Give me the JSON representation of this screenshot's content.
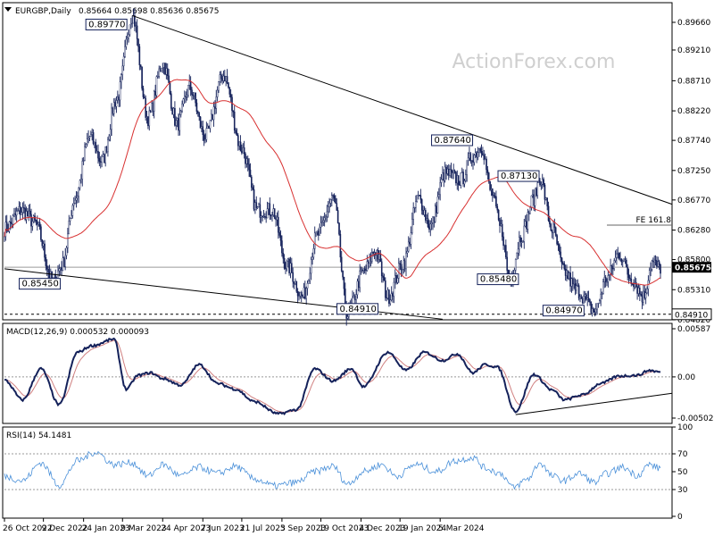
{
  "header": {
    "symbol": "EURGBP,Daily",
    "ohlc": "0.85664 0.85698 0.85636 0.85675"
  },
  "watermark": "ActionForex.com",
  "colors": {
    "candle": "#14215a",
    "ma": "#d83030",
    "macd_line": "#14215a",
    "macd_signal": "#d08080",
    "rsi": "#4a90d9",
    "trendline": "#000000",
    "grid_ref": "#999999"
  },
  "chart_data": [
    {
      "type": "candlestick",
      "title": "EURGBP,Daily",
      "ylim": [
        0.8482,
        0.8998
      ],
      "ytick_labels": [
        "0.89660",
        "0.89210",
        "0.88710",
        "0.88220",
        "0.87740",
        "0.87250",
        "0.86770",
        "0.86280",
        "0.85800",
        "0.85310",
        "0.84820"
      ],
      "ytick_values": [
        0.8966,
        0.8921,
        0.8871,
        0.8822,
        0.8774,
        0.8725,
        0.8677,
        0.8628,
        0.858,
        0.8531,
        0.8482
      ],
      "last_price": "0.85675",
      "last_price_value": 0.85675,
      "support_level": "0.84910",
      "support_value": 0.8491,
      "fe_label": "FE 161.8",
      "fe_value": 0.8636,
      "xtick_labels": [
        "26 Oct 2022",
        "9 Dec 2022",
        "24 Jan 2023",
        "9 Mar 2023",
        "24 Apr 2023",
        "7 Jun 2023",
        "21 Jul 2023",
        "5 Sep 2023",
        "19 Oct 2023",
        "4 Dec 2023",
        "19 Jan 2024",
        "5 Mar 2024"
      ],
      "xtick_index": [
        0,
        32,
        65,
        97,
        130,
        163,
        195,
        228,
        260,
        293,
        325,
        358
      ],
      "annotations": [
        {
          "label": "0.89770",
          "index": 105,
          "value": 0.8977
        },
        {
          "label": "0.85450",
          "index": 40,
          "value": 0.8545
        },
        {
          "label": "0.84910",
          "index": 282,
          "value": 0.8491
        },
        {
          "label": "0.87640",
          "index": 392,
          "value": 0.8764
        },
        {
          "label": "0.85480",
          "index": 415,
          "value": 0.8548
        },
        {
          "label": "0.87130",
          "index": 440,
          "value": 0.8713
        },
        {
          "label": "0.84970",
          "index": 485,
          "value": 0.8497
        }
      ],
      "anchors": [
        [
          0,
          0.863
        ],
        [
          14,
          0.866
        ],
        [
          25,
          0.864
        ],
        [
          40,
          0.8545
        ],
        [
          47,
          0.857
        ],
        [
          58,
          0.868
        ],
        [
          70,
          0.878
        ],
        [
          80,
          0.874
        ],
        [
          92,
          0.884
        ],
        [
          105,
          0.8977
        ],
        [
          118,
          0.881
        ],
        [
          130,
          0.89
        ],
        [
          142,
          0.88
        ],
        [
          152,
          0.886
        ],
        [
          165,
          0.878
        ],
        [
          180,
          0.888
        ],
        [
          195,
          0.876
        ],
        [
          208,
          0.866
        ],
        [
          220,
          0.866
        ],
        [
          232,
          0.857
        ],
        [
          245,
          0.852
        ],
        [
          257,
          0.862
        ],
        [
          270,
          0.868
        ],
        [
          282,
          0.8491
        ],
        [
          295,
          0.856
        ],
        [
          305,
          0.8595
        ],
        [
          315,
          0.852
        ],
        [
          328,
          0.8575
        ],
        [
          340,
          0.868
        ],
        [
          350,
          0.8635
        ],
        [
          362,
          0.872
        ],
        [
          375,
          0.871
        ],
        [
          385,
          0.875
        ],
        [
          392,
          0.8764
        ],
        [
          400,
          0.869
        ],
        [
          408,
          0.863
        ],
        [
          415,
          0.8548
        ],
        [
          425,
          0.862
        ],
        [
          435,
          0.868
        ],
        [
          440,
          0.8713
        ],
        [
          450,
          0.863
        ],
        [
          460,
          0.856
        ],
        [
          470,
          0.853
        ],
        [
          485,
          0.8497
        ],
        [
          495,
          0.855
        ],
        [
          505,
          0.859
        ],
        [
          515,
          0.855
        ],
        [
          525,
          0.852
        ],
        [
          532,
          0.8575
        ],
        [
          538,
          0.8567
        ]
      ]
    },
    {
      "type": "line",
      "title": "MACD(12,26,9) 0.000532 0.000093",
      "ylim": [
        -0.005021,
        0.00587
      ],
      "ytick_labels": [
        "0.00587",
        "0.00",
        "-0.005021"
      ],
      "ytick_values": [
        0.00587,
        0.0,
        -0.005021
      ],
      "anchors": [
        [
          0,
          -0.0004
        ],
        [
          15,
          -0.0028
        ],
        [
          30,
          0.001
        ],
        [
          45,
          -0.0034
        ],
        [
          60,
          0.003
        ],
        [
          72,
          0.0038
        ],
        [
          90,
          0.0046
        ],
        [
          100,
          -0.0015
        ],
        [
          110,
          0.0002
        ],
        [
          120,
          0.0005
        ],
        [
          130,
          -0.0002
        ],
        [
          145,
          -0.001
        ],
        [
          160,
          0.0015
        ],
        [
          175,
          -0.0008
        ],
        [
          190,
          -0.0015
        ],
        [
          205,
          -0.003
        ],
        [
          225,
          -0.0045
        ],
        [
          240,
          -0.004
        ],
        [
          255,
          0.001
        ],
        [
          270,
          -0.0005
        ],
        [
          285,
          0.001
        ],
        [
          295,
          -0.0012
        ],
        [
          315,
          0.003
        ],
        [
          330,
          0.0008
        ],
        [
          345,
          0.003
        ],
        [
          360,
          0.002
        ],
        [
          372,
          0.0028
        ],
        [
          385,
          0.0005
        ],
        [
          395,
          0.0015
        ],
        [
          405,
          0.0012
        ],
        [
          420,
          -0.0042
        ],
        [
          435,
          0.0003
        ],
        [
          450,
          -0.0016
        ],
        [
          460,
          -0.0028
        ],
        [
          475,
          -0.0022
        ],
        [
          490,
          -0.0008
        ],
        [
          505,
          0.0001
        ],
        [
          520,
          0.0002
        ],
        [
          530,
          0.0008
        ],
        [
          538,
          0.0006
        ]
      ]
    },
    {
      "type": "line",
      "title": "RSI(14) 54.1481",
      "ylim": [
        0,
        100
      ],
      "ytick_labels": [
        "100",
        "70",
        "50",
        "30",
        "0"
      ],
      "ytick_values": [
        100,
        70,
        50,
        30,
        0
      ],
      "anchors": [
        [
          0,
          45
        ],
        [
          15,
          40
        ],
        [
          30,
          60
        ],
        [
          45,
          35
        ],
        [
          60,
          62
        ],
        [
          75,
          72
        ],
        [
          90,
          58
        ],
        [
          105,
          60
        ],
        [
          118,
          45
        ],
        [
          130,
          58
        ],
        [
          145,
          45
        ],
        [
          160,
          55
        ],
        [
          175,
          48
        ],
        [
          190,
          56
        ],
        [
          205,
          42
        ],
        [
          222,
          34
        ],
        [
          240,
          38
        ],
        [
          255,
          50
        ],
        [
          270,
          56
        ],
        [
          282,
          36
        ],
        [
          295,
          50
        ],
        [
          310,
          58
        ],
        [
          322,
          45
        ],
        [
          338,
          58
        ],
        [
          355,
          50
        ],
        [
          370,
          62
        ],
        [
          385,
          66
        ],
        [
          395,
          54
        ],
        [
          408,
          48
        ],
        [
          418,
          32
        ],
        [
          430,
          42
        ],
        [
          440,
          60
        ],
        [
          450,
          45
        ],
        [
          460,
          40
        ],
        [
          472,
          48
        ],
        [
          485,
          38
        ],
        [
          495,
          48
        ],
        [
          508,
          55
        ],
        [
          520,
          46
        ],
        [
          530,
          58
        ],
        [
          538,
          54
        ]
      ]
    }
  ]
}
